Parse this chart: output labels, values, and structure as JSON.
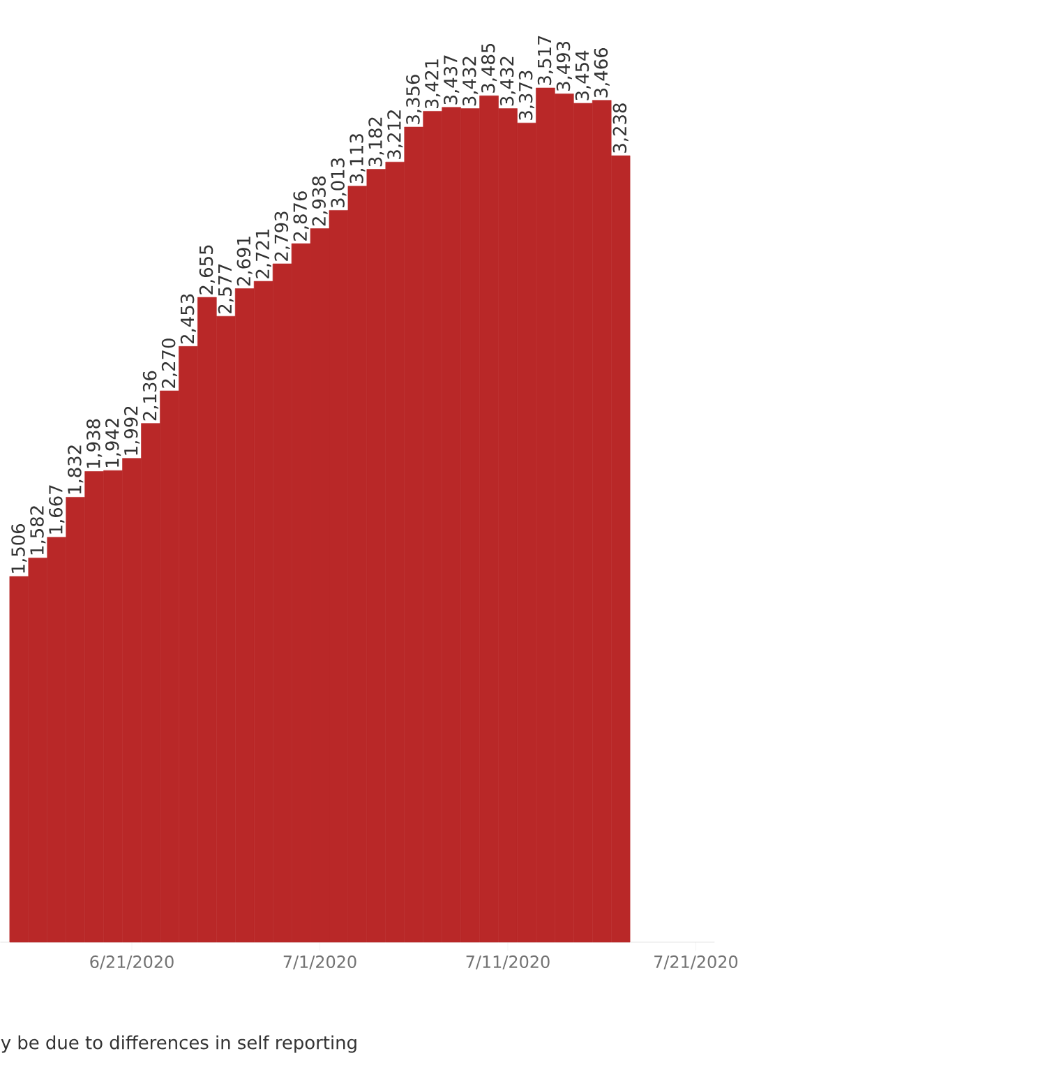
{
  "chart_data": {
    "type": "bar",
    "color": "#b92828",
    "x": [
      "2020-06-15",
      "2020-06-16",
      "2020-06-17",
      "2020-06-18",
      "2020-06-19",
      "2020-06-20",
      "2020-06-21",
      "2020-06-22",
      "2020-06-23",
      "2020-06-24",
      "2020-06-25",
      "2020-06-26",
      "2020-06-27",
      "2020-06-28",
      "2020-06-29",
      "2020-06-30",
      "2020-07-01",
      "2020-07-02",
      "2020-07-03",
      "2020-07-04",
      "2020-07-05",
      "2020-07-06",
      "2020-07-07",
      "2020-07-08",
      "2020-07-09",
      "2020-07-10",
      "2020-07-11",
      "2020-07-12",
      "2020-07-13",
      "2020-07-14",
      "2020-07-15",
      "2020-07-16",
      "2020-07-17"
    ],
    "values": [
      1506,
      1582,
      1667,
      1832,
      1938,
      1942,
      1992,
      2136,
      2270,
      2453,
      2655,
      2577,
      2691,
      2721,
      2793,
      2876,
      2938,
      3013,
      3113,
      3182,
      3212,
      3356,
      3421,
      3437,
      3432,
      3485,
      3432,
      3373,
      3517,
      3493,
      3454,
      3466,
      3238
    ],
    "value_labels": [
      "1,506",
      "1,582",
      "1,667",
      "1,832",
      "1,938",
      "1,942",
      "1,992",
      "2,136",
      "2,270",
      "2,453",
      "2,655",
      "2,577",
      "2,691",
      "2,721",
      "2,793",
      "2,876",
      "2,938",
      "3,013",
      "3,113",
      "3,182",
      "3,212",
      "3,356",
      "3,421",
      "3,437",
      "3,432",
      "3,485",
      "3,432",
      "3,373",
      "3,517",
      "3,493",
      "3,454",
      "3,466",
      "3,238"
    ],
    "xlim": [
      "2020-06-14",
      "2020-07-22"
    ],
    "xticks": [
      {
        "value": "2020-06-21",
        "label": "6/21/2020"
      },
      {
        "value": "2020-07-01",
        "label": "7/1/2020"
      },
      {
        "value": "2020-07-11",
        "label": "7/11/2020"
      },
      {
        "value": "2020-07-21",
        "label": "7/21/2020"
      }
    ],
    "tick_labels": "x",
    "annotations": [
      "y be due to differences in self reporting"
    ]
  }
}
